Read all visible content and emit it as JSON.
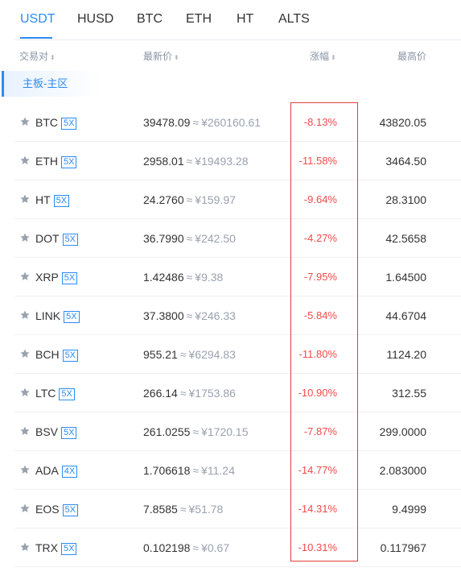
{
  "tabs": [
    "USDT",
    "HUSD",
    "BTC",
    "ETH",
    "HT",
    "ALTS"
  ],
  "active_tab": "USDT",
  "headers": {
    "pair": "交易对",
    "latest_price": "最新价",
    "change": "涨幅",
    "high": "最高价"
  },
  "section_label": "主板-主区",
  "approx_symbol": "≈",
  "colors": {
    "accent": "#2b8bf2",
    "negative": "#f04a4a",
    "highlight_border": "#e33d3d",
    "star": "#9aa2ae"
  },
  "rows": [
    {
      "coin": "BTC",
      "leverage": "5X",
      "price": "39478.09",
      "cny": "¥260160.61",
      "change": "-8.13%",
      "high": "43820.05"
    },
    {
      "coin": "ETH",
      "leverage": "5X",
      "price": "2958.01",
      "cny": "¥19493.28",
      "change": "-11.58%",
      "high": "3464.50"
    },
    {
      "coin": "HT",
      "leverage": "5X",
      "price": "24.2760",
      "cny": "¥159.97",
      "change": "-9.64%",
      "high": "28.3100"
    },
    {
      "coin": "DOT",
      "leverage": "5X",
      "price": "36.7990",
      "cny": "¥242.50",
      "change": "-4.27%",
      "high": "42.5658"
    },
    {
      "coin": "XRP",
      "leverage": "5X",
      "price": "1.42486",
      "cny": "¥9.38",
      "change": "-7.95%",
      "high": "1.64500"
    },
    {
      "coin": "LINK",
      "leverage": "5X",
      "price": "37.3800",
      "cny": "¥246.33",
      "change": "-5.84%",
      "high": "44.6704"
    },
    {
      "coin": "BCH",
      "leverage": "5X",
      "price": "955.21",
      "cny": "¥6294.83",
      "change": "-11.80%",
      "high": "1124.20"
    },
    {
      "coin": "LTC",
      "leverage": "5X",
      "price": "266.14",
      "cny": "¥1753.86",
      "change": "-10.90%",
      "high": "312.55"
    },
    {
      "coin": "BSV",
      "leverage": "5X",
      "price": "261.0255",
      "cny": "¥1720.15",
      "change": "-7.87%",
      "high": "299.0000"
    },
    {
      "coin": "ADA",
      "leverage": "4X",
      "price": "1.706618",
      "cny": "¥11.24",
      "change": "-14.77%",
      "high": "2.083000"
    },
    {
      "coin": "EOS",
      "leverage": "5X",
      "price": "7.8585",
      "cny": "¥51.78",
      "change": "-14.31%",
      "high": "9.4999"
    },
    {
      "coin": "TRX",
      "leverage": "5X",
      "price": "0.102198",
      "cny": "¥0.67",
      "change": "-10.31%",
      "high": "0.117967"
    }
  ]
}
